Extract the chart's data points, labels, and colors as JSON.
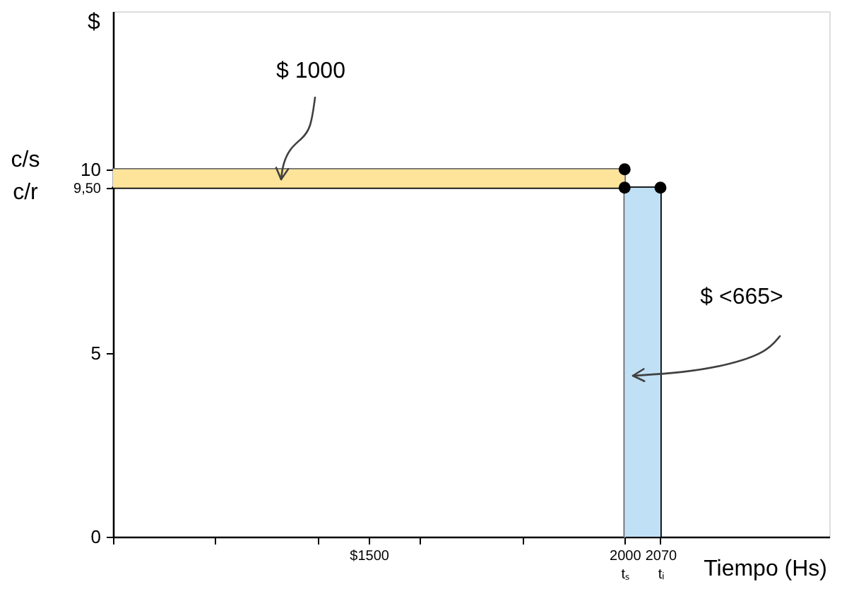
{
  "chart_data": {
    "type": "line",
    "xlabel": "Tiempo (Hs)",
    "ylabel": "$",
    "xlim": [
      1000,
      2400
    ],
    "xticks": [
      {
        "value": 1000,
        "label": null
      },
      {
        "value": 1200,
        "label": null
      },
      {
        "value": 1400,
        "label": null
      },
      {
        "value": 1500,
        "label": "$1500"
      },
      {
        "value": 1600,
        "label": null
      },
      {
        "value": 1800,
        "label": null
      },
      {
        "value": 2000,
        "label": "2000\ntₛ"
      },
      {
        "value": 2070,
        "label": "2070\ntᵢ"
      }
    ],
    "ylim": [
      0,
      14.3
    ],
    "yticks": [
      0,
      5,
      {
        "value": 9.5,
        "label": "9,50"
      },
      10
    ],
    "series": [
      {
        "color": "#fde49a",
        "x": [
          1000,
          2000
        ],
        "values": [
          null,
          null
        ],
        "lower": [
          9.5,
          9.5
        ],
        "upper": [
          10,
          10
        ]
      },
      {
        "type": "area",
        "color": "#c0e0f5",
        "x": [
          2000,
          2070
        ],
        "values": [
          9.5,
          9.5
        ]
      },
      {
        "color": "#6e6e6e",
        "x": [
          1000,
          2000,
          2000
        ],
        "values": [
          10,
          10,
          0
        ]
      },
      {
        "color": "#000000",
        "x": [
          1000,
          2070,
          2070
        ],
        "values": [
          9.5,
          9.5,
          0
        ]
      },
      {
        "type": "scatter",
        "color": "#000000",
        "marker": "circle",
        "x": [
          2000,
          2000,
          2070
        ],
        "values": [
          10,
          9.5,
          9.5
        ]
      }
    ],
    "annotations": [
      "c/s",
      "c/r",
      "$ 1000",
      "$ <665>"
    ]
  }
}
